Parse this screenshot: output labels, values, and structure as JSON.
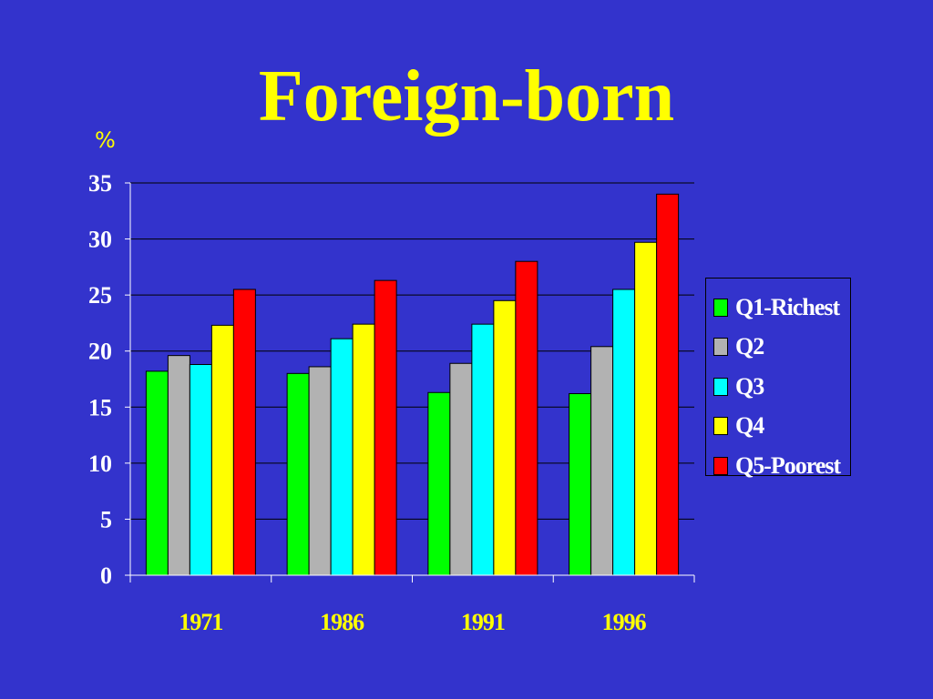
{
  "slide": {
    "title": "Foreign-born",
    "unit_label": "%"
  },
  "colors": {
    "background": "#3333cc",
    "title": "#ffff00",
    "text": "#ffffff",
    "gridline": "#000000"
  },
  "chart_data": {
    "type": "bar",
    "title": "Foreign-born",
    "xlabel": "",
    "ylabel": "%",
    "categories": [
      "1971",
      "1986",
      "1991",
      "1996"
    ],
    "ylim": [
      0,
      35
    ],
    "yticks": [
      0,
      5,
      10,
      15,
      20,
      25,
      30,
      35
    ],
    "grid": true,
    "legend_position": "right",
    "series": [
      {
        "name": "Q1-Richest",
        "color": "#00ff00",
        "values": [
          18.2,
          18.0,
          16.3,
          16.2
        ]
      },
      {
        "name": "Q2",
        "color": "#b2b2b2",
        "values": [
          19.6,
          18.6,
          18.9,
          20.4
        ]
      },
      {
        "name": "Q3",
        "color": "#00ffff",
        "values": [
          18.8,
          21.1,
          22.4,
          25.5
        ]
      },
      {
        "name": "Q4",
        "color": "#ffff00",
        "values": [
          22.3,
          22.4,
          24.5,
          29.7
        ]
      },
      {
        "name": "Q5-Poorest",
        "color": "#ff0000",
        "values": [
          25.5,
          26.3,
          28.0,
          34.0
        ]
      }
    ]
  }
}
